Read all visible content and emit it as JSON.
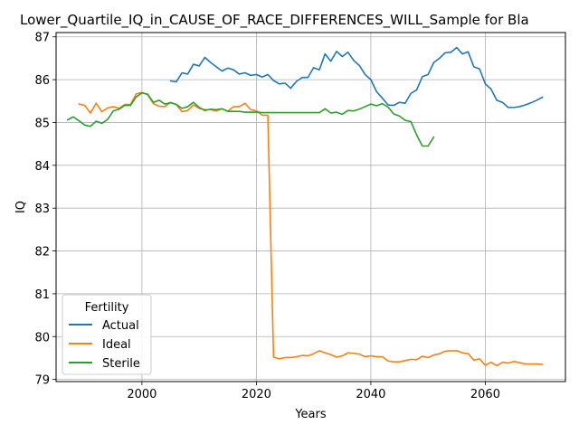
{
  "chart_data": {
    "type": "line",
    "title": "Lower_Quartile_IQ_in_CAUSE_OF_RACE_DIFFERENCES_WILL_Sample for Bla",
    "xlabel": "Years",
    "ylabel": "IQ",
    "xlim": [
      1985,
      2074
    ],
    "ylim": [
      78.95,
      87.1
    ],
    "xticks": [
      2000,
      2020,
      2040,
      2060
    ],
    "yticks": [
      79,
      80,
      81,
      82,
      83,
      84,
      85,
      86,
      87
    ],
    "grid": true,
    "legend": {
      "title": "Fertility",
      "placement": "lower-left"
    },
    "series": [
      {
        "name": "Actual",
        "color": "#1f77b4",
        "points": [
          [
            2005,
            85.97
          ],
          [
            2006,
            85.95
          ],
          [
            2007,
            86.16
          ],
          [
            2008,
            86.13
          ],
          [
            2009,
            86.36
          ],
          [
            2010,
            86.32
          ],
          [
            2011,
            86.52
          ],
          [
            2012,
            86.4
          ],
          [
            2013,
            86.3
          ],
          [
            2014,
            86.2
          ],
          [
            2015,
            86.27
          ],
          [
            2016,
            86.23
          ],
          [
            2017,
            86.13
          ],
          [
            2018,
            86.16
          ],
          [
            2019,
            86.1
          ],
          [
            2020,
            86.12
          ],
          [
            2021,
            86.06
          ],
          [
            2022,
            86.12
          ],
          [
            2023,
            85.98
          ],
          [
            2024,
            85.9
          ],
          [
            2025,
            85.92
          ],
          [
            2026,
            85.8
          ],
          [
            2027,
            85.96
          ],
          [
            2028,
            86.05
          ],
          [
            2029,
            86.05
          ],
          [
            2030,
            86.28
          ],
          [
            2031,
            86.23
          ],
          [
            2032,
            86.6
          ],
          [
            2033,
            86.43
          ],
          [
            2034,
            86.66
          ],
          [
            2035,
            86.54
          ],
          [
            2036,
            86.64
          ],
          [
            2037,
            86.45
          ],
          [
            2038,
            86.33
          ],
          [
            2039,
            86.12
          ],
          [
            2040,
            86.0
          ],
          [
            2041,
            85.72
          ],
          [
            2042,
            85.57
          ],
          [
            2043,
            85.41
          ],
          [
            2044,
            85.4
          ],
          [
            2045,
            85.47
          ],
          [
            2046,
            85.45
          ],
          [
            2047,
            85.68
          ],
          [
            2048,
            85.76
          ],
          [
            2049,
            86.07
          ],
          [
            2050,
            86.12
          ],
          [
            2051,
            86.4
          ],
          [
            2052,
            86.5
          ],
          [
            2053,
            86.63
          ],
          [
            2054,
            86.64
          ],
          [
            2055,
            86.75
          ],
          [
            2056,
            86.6
          ],
          [
            2057,
            86.65
          ],
          [
            2058,
            86.3
          ],
          [
            2059,
            86.25
          ],
          [
            2060,
            85.9
          ],
          [
            2061,
            85.78
          ],
          [
            2062,
            85.52
          ],
          [
            2063,
            85.47
          ],
          [
            2064,
            85.35
          ],
          [
            2065,
            85.35
          ],
          [
            2066,
            85.37
          ],
          [
            2067,
            85.41
          ],
          [
            2068,
            85.46
          ],
          [
            2069,
            85.52
          ],
          [
            2070,
            85.59
          ]
        ]
      },
      {
        "name": "Ideal",
        "color": "#ff7f0e",
        "points": [
          [
            1989,
            85.43
          ],
          [
            1990,
            85.4
          ],
          [
            1991,
            85.22
          ],
          [
            1992,
            85.45
          ],
          [
            1993,
            85.25
          ],
          [
            1994,
            85.34
          ],
          [
            1995,
            85.37
          ],
          [
            1996,
            85.33
          ],
          [
            1997,
            85.42
          ],
          [
            1998,
            85.42
          ],
          [
            1999,
            85.67
          ],
          [
            2000,
            85.7
          ],
          [
            2001,
            85.65
          ],
          [
            2002,
            85.44
          ],
          [
            2003,
            85.38
          ],
          [
            2004,
            85.37
          ],
          [
            2005,
            85.47
          ],
          [
            2006,
            85.42
          ],
          [
            2007,
            85.25
          ],
          [
            2008,
            85.28
          ],
          [
            2009,
            85.41
          ],
          [
            2010,
            85.33
          ],
          [
            2011,
            85.3
          ],
          [
            2012,
            85.3
          ],
          [
            2013,
            85.27
          ],
          [
            2014,
            85.32
          ],
          [
            2015,
            85.26
          ],
          [
            2016,
            85.37
          ],
          [
            2017,
            85.37
          ],
          [
            2018,
            85.45
          ],
          [
            2019,
            85.3
          ],
          [
            2020,
            85.27
          ],
          [
            2021,
            85.17
          ],
          [
            2022,
            85.17
          ],
          [
            2023,
            79.52
          ],
          [
            2024,
            79.48
          ],
          [
            2025,
            79.51
          ],
          [
            2026,
            79.51
          ],
          [
            2027,
            79.53
          ],
          [
            2028,
            79.56
          ],
          [
            2029,
            79.55
          ],
          [
            2030,
            79.6
          ],
          [
            2031,
            79.67
          ],
          [
            2032,
            79.62
          ],
          [
            2033,
            79.58
          ],
          [
            2034,
            79.52
          ],
          [
            2035,
            79.55
          ],
          [
            2036,
            79.62
          ],
          [
            2037,
            79.61
          ],
          [
            2038,
            79.59
          ],
          [
            2039,
            79.53
          ],
          [
            2040,
            79.55
          ],
          [
            2041,
            79.53
          ],
          [
            2042,
            79.53
          ],
          [
            2043,
            79.43
          ],
          [
            2044,
            79.41
          ],
          [
            2045,
            79.41
          ],
          [
            2046,
            79.44
          ],
          [
            2047,
            79.47
          ],
          [
            2048,
            79.46
          ],
          [
            2049,
            79.54
          ],
          [
            2050,
            79.51
          ],
          [
            2051,
            79.57
          ],
          [
            2052,
            79.6
          ],
          [
            2053,
            79.66
          ],
          [
            2054,
            79.67
          ],
          [
            2055,
            79.67
          ],
          [
            2056,
            79.62
          ],
          [
            2057,
            79.6
          ],
          [
            2058,
            79.45
          ],
          [
            2059,
            79.48
          ],
          [
            2060,
            79.33
          ],
          [
            2061,
            79.4
          ],
          [
            2062,
            79.32
          ],
          [
            2063,
            79.4
          ],
          [
            2064,
            79.38
          ],
          [
            2065,
            79.42
          ],
          [
            2066,
            79.39
          ],
          [
            2067,
            79.36
          ],
          [
            2068,
            79.36
          ],
          [
            2069,
            79.36
          ],
          [
            2070,
            79.35
          ]
        ]
      },
      {
        "name": "Sterile",
        "color": "#2ca02c",
        "points": [
          [
            1987,
            85.06
          ],
          [
            1988,
            85.13
          ],
          [
            1989,
            85.04
          ],
          [
            1990,
            84.94
          ],
          [
            1991,
            84.91
          ],
          [
            1992,
            85.03
          ],
          [
            1993,
            84.98
          ],
          [
            1994,
            85.07
          ],
          [
            1995,
            85.27
          ],
          [
            1996,
            85.31
          ],
          [
            1997,
            85.4
          ],
          [
            1998,
            85.4
          ],
          [
            1999,
            85.6
          ],
          [
            2000,
            85.69
          ],
          [
            2001,
            85.66
          ],
          [
            2002,
            85.47
          ],
          [
            2003,
            85.52
          ],
          [
            2004,
            85.43
          ],
          [
            2005,
            85.46
          ],
          [
            2006,
            85.42
          ],
          [
            2007,
            85.33
          ],
          [
            2008,
            85.37
          ],
          [
            2009,
            85.47
          ],
          [
            2010,
            85.35
          ],
          [
            2011,
            85.28
          ],
          [
            2012,
            85.31
          ],
          [
            2013,
            85.3
          ],
          [
            2014,
            85.32
          ],
          [
            2015,
            85.26
          ],
          [
            2016,
            85.26
          ],
          [
            2017,
            85.26
          ],
          [
            2018,
            85.24
          ],
          [
            2019,
            85.24
          ],
          [
            2020,
            85.24
          ],
          [
            2021,
            85.23
          ],
          [
            2022,
            85.23
          ],
          [
            2023,
            85.23
          ],
          [
            2024,
            85.23
          ],
          [
            2025,
            85.23
          ],
          [
            2026,
            85.23
          ],
          [
            2027,
            85.23
          ],
          [
            2028,
            85.23
          ],
          [
            2029,
            85.23
          ],
          [
            2030,
            85.23
          ],
          [
            2031,
            85.23
          ],
          [
            2032,
            85.32
          ],
          [
            2033,
            85.22
          ],
          [
            2034,
            85.24
          ],
          [
            2035,
            85.19
          ],
          [
            2036,
            85.28
          ],
          [
            2037,
            85.27
          ],
          [
            2038,
            85.31
          ],
          [
            2039,
            85.37
          ],
          [
            2040,
            85.43
          ],
          [
            2041,
            85.39
          ],
          [
            2042,
            85.44
          ],
          [
            2043,
            85.36
          ],
          [
            2044,
            85.2
          ],
          [
            2045,
            85.15
          ],
          [
            2046,
            85.05
          ],
          [
            2047,
            85.02
          ],
          [
            2048,
            84.71
          ],
          [
            2049,
            84.45
          ],
          [
            2050,
            84.45
          ],
          [
            2051,
            84.66
          ]
        ]
      }
    ]
  }
}
